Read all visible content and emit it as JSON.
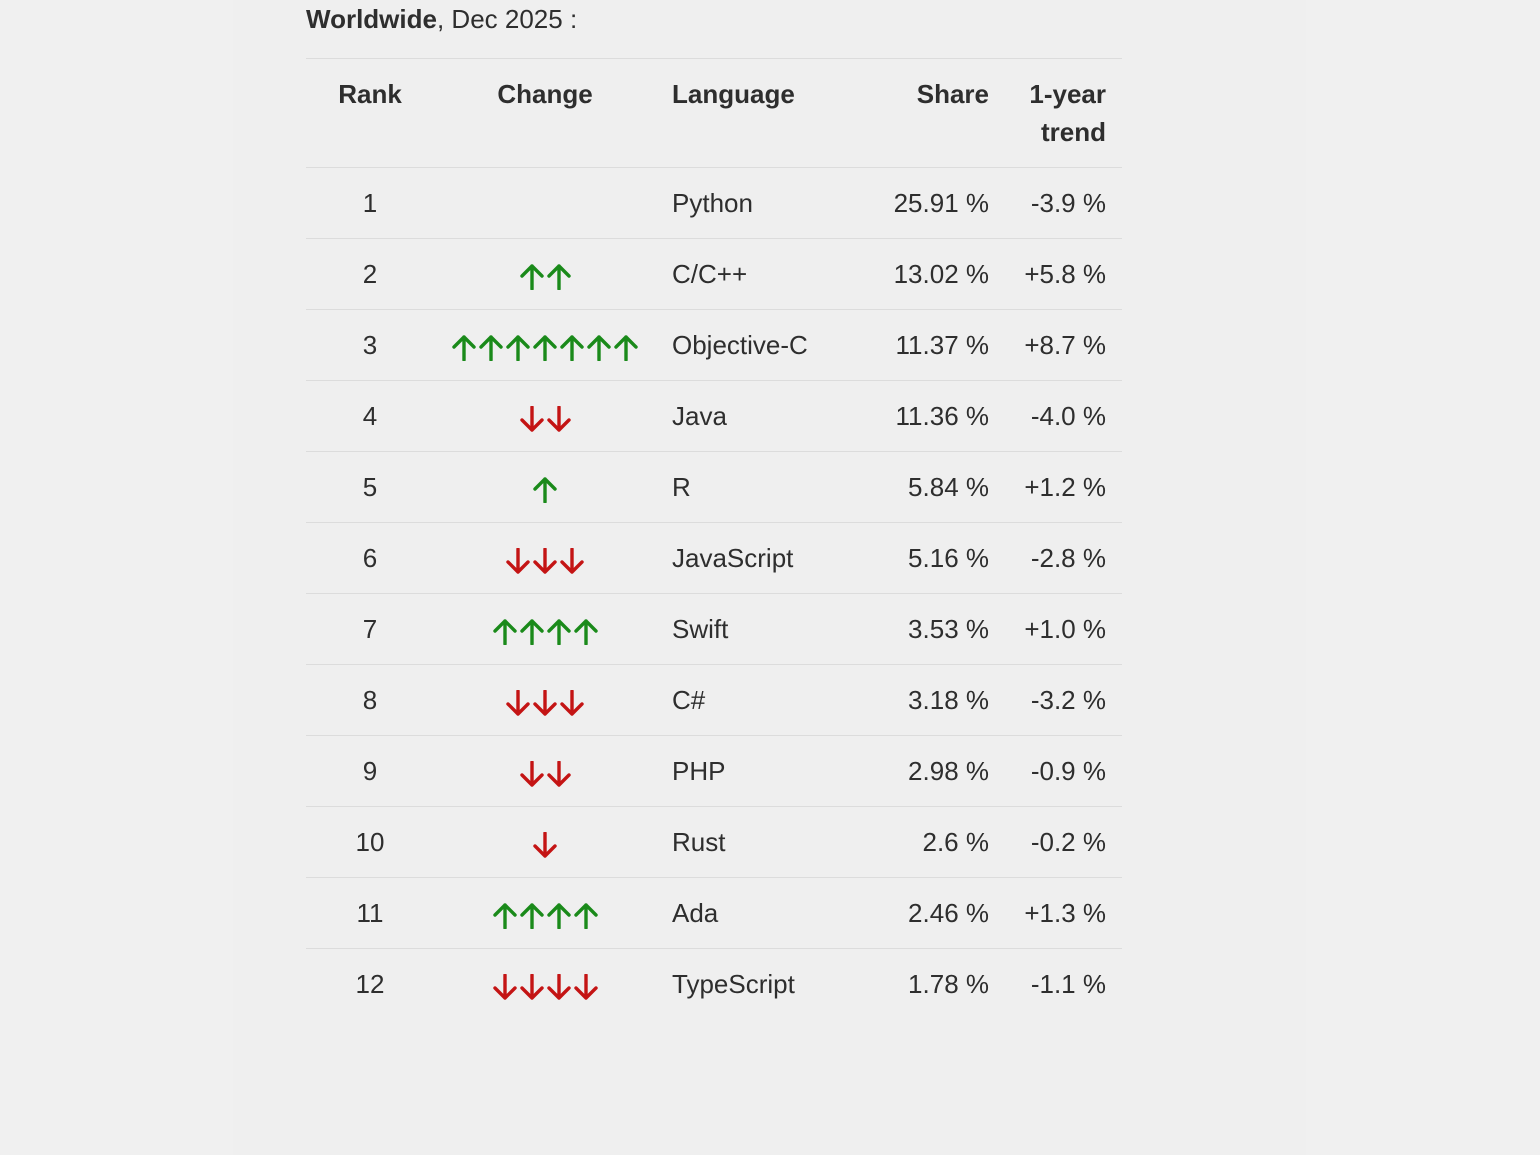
{
  "heading": {
    "region": "Worldwide",
    "period": ", Dec 2025 :"
  },
  "table": {
    "headers": {
      "rank": "Rank",
      "change": "Change",
      "language": "Language",
      "share": "Share",
      "trend": "1-year trend"
    },
    "rows": [
      {
        "rank": "1",
        "change": {
          "direction": "none",
          "count": 0
        },
        "language": "Python",
        "share": "25.91 %",
        "trend": "-3.9 %"
      },
      {
        "rank": "2",
        "change": {
          "direction": "up",
          "count": 2
        },
        "language": "C/C++",
        "share": "13.02 %",
        "trend": "+5.8 %"
      },
      {
        "rank": "3",
        "change": {
          "direction": "up",
          "count": 7
        },
        "language": "Objective-C",
        "share": "11.37 %",
        "trend": "+8.7 %"
      },
      {
        "rank": "4",
        "change": {
          "direction": "down",
          "count": 2
        },
        "language": "Java",
        "share": "11.36 %",
        "trend": "-4.0 %"
      },
      {
        "rank": "5",
        "change": {
          "direction": "up",
          "count": 1
        },
        "language": "R",
        "share": "5.84 %",
        "trend": "+1.2 %"
      },
      {
        "rank": "6",
        "change": {
          "direction": "down",
          "count": 3
        },
        "language": "JavaScript",
        "share": "5.16 %",
        "trend": "-2.8 %"
      },
      {
        "rank": "7",
        "change": {
          "direction": "up",
          "count": 4
        },
        "language": "Swift",
        "share": "3.53 %",
        "trend": "+1.0 %"
      },
      {
        "rank": "8",
        "change": {
          "direction": "down",
          "count": 3
        },
        "language": "C#",
        "share": "3.18 %",
        "trend": "-3.2 %"
      },
      {
        "rank": "9",
        "change": {
          "direction": "down",
          "count": 2
        },
        "language": "PHP",
        "share": "2.98 %",
        "trend": "-0.9 %"
      },
      {
        "rank": "10",
        "change": {
          "direction": "down",
          "count": 1
        },
        "language": "Rust",
        "share": "2.6 %",
        "trend": "-0.2 %"
      },
      {
        "rank": "11",
        "change": {
          "direction": "up",
          "count": 4
        },
        "language": "Ada",
        "share": "2.46 %",
        "trend": "+1.3 %"
      },
      {
        "rank": "12",
        "change": {
          "direction": "down",
          "count": 4
        },
        "language": "TypeScript",
        "share": "1.78 %",
        "trend": "-1.1 %"
      }
    ]
  },
  "colors": {
    "up_arrow": "#1a8a1a",
    "down_arrow": "#c41414",
    "row_border": "#dcdcdc",
    "text": "#2e2e2e"
  },
  "icons": {
    "up": "arrow-up-icon",
    "down": "arrow-down-icon"
  }
}
